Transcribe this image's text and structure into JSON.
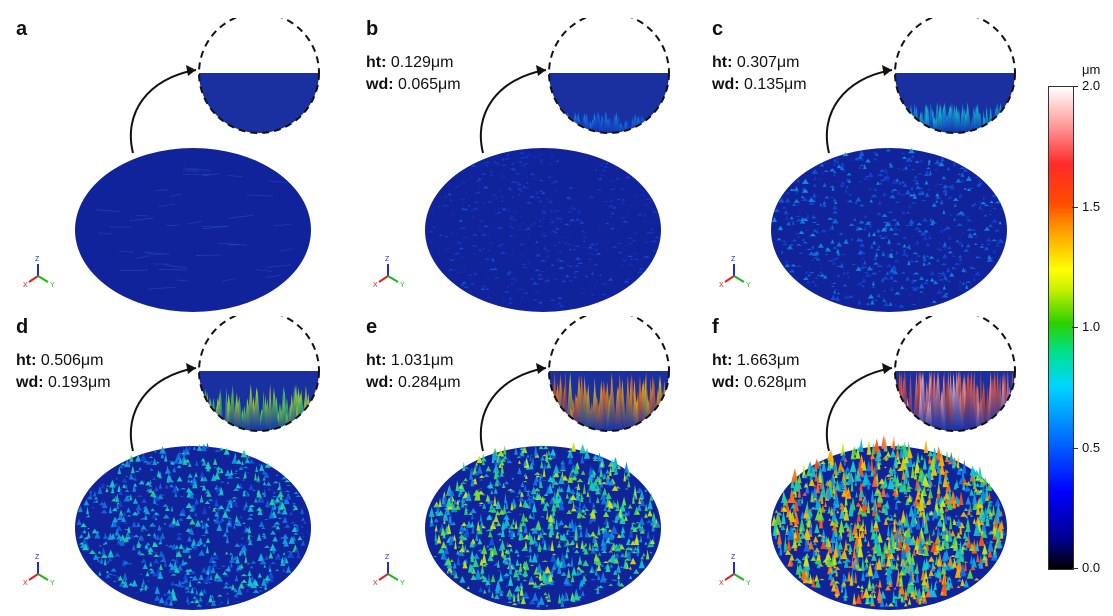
{
  "panels": [
    {
      "id": "a",
      "letter": "a",
      "ht": "",
      "wd": "",
      "peaks": 0,
      "inset_peaks": 0.0,
      "max": "#1a2f99"
    },
    {
      "id": "b",
      "letter": "b",
      "ht": "0.129μm",
      "wd": "0.065μm",
      "peaks": 0.2,
      "inset_peaks": 0.25,
      "max": "#2256c8"
    },
    {
      "id": "c",
      "letter": "c",
      "ht": "0.307μm",
      "wd": "0.135μm",
      "peaks": 0.35,
      "inset_peaks": 0.4,
      "max": "#2ea0d8"
    },
    {
      "id": "d",
      "letter": "d",
      "ht": "0.506μm",
      "wd": "0.193μm",
      "peaks": 0.55,
      "inset_peaks": 0.65,
      "max": "#27c7b9"
    },
    {
      "id": "e",
      "letter": "e",
      "ht": "1.031μm",
      "wd": "0.284μm",
      "peaks": 0.75,
      "inset_peaks": 0.85,
      "max": "#9bd31a"
    },
    {
      "id": "f",
      "letter": "f",
      "ht": "1.663μm",
      "wd": "0.628μm",
      "peaks": 1.0,
      "inset_peaks": 1.0,
      "max": "#ff5a1f"
    }
  ],
  "labels": {
    "ht": "ht:",
    "wd": "wd:"
  },
  "axes": {
    "z": "Z",
    "x": "X",
    "y": "Y"
  },
  "colorbar": {
    "unit": "μm",
    "ticks": [
      {
        "label": "2.0",
        "value": 2.0
      },
      {
        "label": "1.5",
        "value": 1.5
      },
      {
        "label": "1.0",
        "value": 1.0
      },
      {
        "label": "0.5",
        "value": 0.5
      },
      {
        "label": "0.0",
        "value": 0.0
      }
    ]
  }
}
